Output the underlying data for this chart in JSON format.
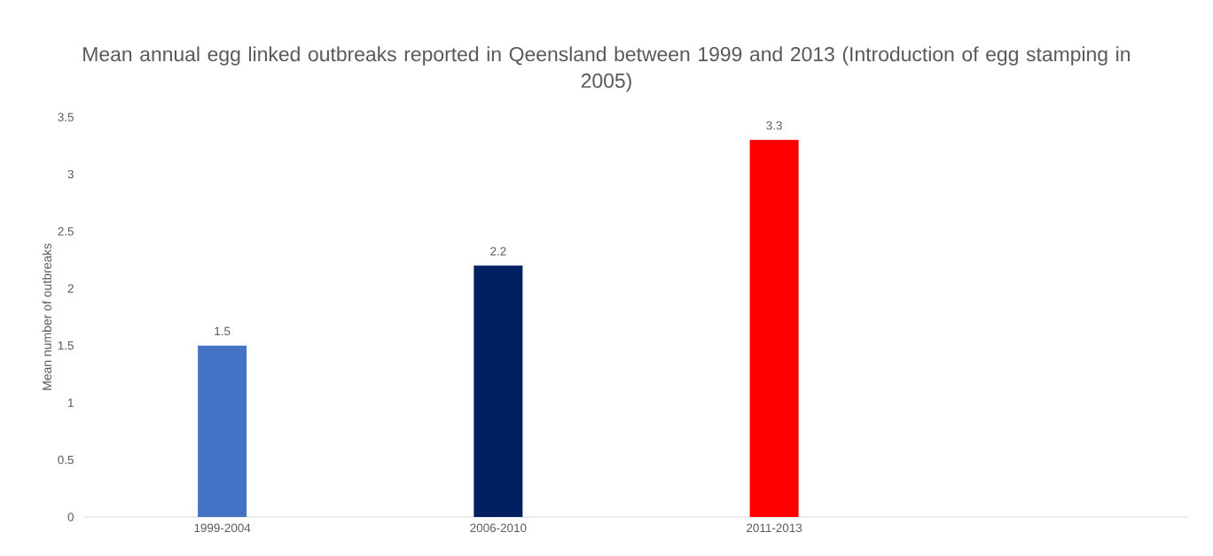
{
  "chart_data": {
    "type": "bar",
    "title": "Mean annual egg linked outbreaks reported in Qeensland between 1999 and 2013 (Introduction of egg stamping in 2005)",
    "ylabel": "Mean number of outbreaks",
    "categories": [
      "1999-2004",
      "2006-2010",
      "2011-2013",
      null
    ],
    "values": [
      1.5,
      2.2,
      3.3,
      null
    ],
    "colors": [
      "#4472c4",
      "#002060",
      "#ff0000",
      "#4472c4"
    ],
    "ylim": [
      0,
      3.5
    ],
    "yticks": [
      0,
      0.5,
      1,
      1.5,
      2,
      2.5,
      3,
      3.5
    ],
    "data_labels": true,
    "grid": false
  }
}
